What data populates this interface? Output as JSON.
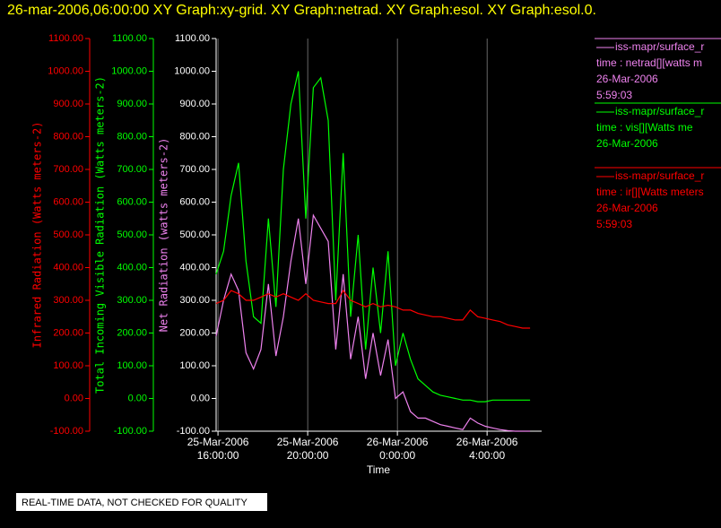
{
  "chart_data": {
    "type": "line",
    "title": "26-mar-2006,06:00:00  XY Graph:xy-grid.  XY Graph:netrad.  XY Graph:esol.  XY Graph:esol.0.",
    "x_label": "Time",
    "note": "REAL-TIME DATA, NOT CHECKED FOR QUALITY",
    "x": [
      "2006-03-25T15:55",
      "2006-03-25T16:15",
      "2006-03-25T16:35",
      "2006-03-25T16:55",
      "2006-03-25T17:15",
      "2006-03-25T17:35",
      "2006-03-25T17:55",
      "2006-03-25T18:15",
      "2006-03-25T18:35",
      "2006-03-25T18:55",
      "2006-03-25T19:15",
      "2006-03-25T19:35",
      "2006-03-25T19:55",
      "2006-03-25T20:15",
      "2006-03-25T20:35",
      "2006-03-25T20:55",
      "2006-03-25T21:15",
      "2006-03-25T21:35",
      "2006-03-25T21:55",
      "2006-03-25T22:15",
      "2006-03-25T22:35",
      "2006-03-25T22:55",
      "2006-03-25T23:15",
      "2006-03-25T23:35",
      "2006-03-25T23:55",
      "2006-03-26T00:15",
      "2006-03-26T00:35",
      "2006-03-26T00:55",
      "2006-03-26T01:15",
      "2006-03-26T01:35",
      "2006-03-26T01:55",
      "2006-03-26T02:15",
      "2006-03-26T02:35",
      "2006-03-26T02:55",
      "2006-03-26T03:15",
      "2006-03-26T03:35",
      "2006-03-26T03:55",
      "2006-03-26T04:15",
      "2006-03-26T04:35",
      "2006-03-26T04:55",
      "2006-03-26T05:15",
      "2006-03-26T05:35",
      "2006-03-26T05:55"
    ],
    "xlim": [
      "2006-03-25T15:55",
      "2006-03-26T06:26"
    ],
    "xticks": [
      {
        "value": "2006-03-25T16:00",
        "label": "25-Mar-2006\n16:00:00"
      },
      {
        "value": "2006-03-25T20:00",
        "label": "25-Mar-2006\n20:00:00"
      },
      {
        "value": "2006-03-26T00:00",
        "label": "26-Mar-2006\n0:00:00"
      },
      {
        "value": "2006-03-26T04:00",
        "label": "26-Mar-2006\n4:00:00"
      }
    ],
    "x_grid": true,
    "axes": [
      {
        "label": "Infrared Radiation (Watts meters-2)",
        "color": "#ff0000",
        "ylim": [
          -100,
          1100
        ],
        "yticks": [
          {
            "value": -100,
            "label": "-100.00"
          },
          {
            "value": 0,
            "label": "0.00"
          },
          {
            "value": 100,
            "label": "100.00"
          },
          {
            "value": 200,
            "label": "200.00"
          },
          {
            "value": 300,
            "label": "300.00"
          },
          {
            "value": 400,
            "label": "400.00"
          },
          {
            "value": 500,
            "label": "500.00"
          },
          {
            "value": 600,
            "label": "600.00"
          },
          {
            "value": 700,
            "label": "700.00"
          },
          {
            "value": 800,
            "label": "800.00"
          },
          {
            "value": 900,
            "label": "900.00"
          },
          {
            "value": 1000,
            "label": "1000.00"
          },
          {
            "value": 1100,
            "label": "1100.00"
          }
        ]
      },
      {
        "label": "Total Incoming Visible Radiation (Watts meters-2)",
        "color": "#00ff00",
        "ylim": [
          -100,
          1100
        ],
        "yticks": [
          {
            "value": -100,
            "label": "-100.00"
          },
          {
            "value": 0,
            "label": "0.00"
          },
          {
            "value": 100,
            "label": "100.00"
          },
          {
            "value": 200,
            "label": "200.00"
          },
          {
            "value": 300,
            "label": "300.00"
          },
          {
            "value": 400,
            "label": "400.00"
          },
          {
            "value": 500,
            "label": "500.00"
          },
          {
            "value": 600,
            "label": "600.00"
          },
          {
            "value": 700,
            "label": "700.00"
          },
          {
            "value": 800,
            "label": "800.00"
          },
          {
            "value": 900,
            "label": "900.00"
          },
          {
            "value": 1000,
            "label": "1000.00"
          },
          {
            "value": 1100,
            "label": "1100.00"
          }
        ]
      },
      {
        "label": "Net Radiation (watts meters-2)",
        "color": "#ee82ee",
        "ylim": [
          -100,
          1100
        ],
        "yticks": [
          {
            "value": -100,
            "label": "-100.00"
          },
          {
            "value": 0,
            "label": "0.00"
          },
          {
            "value": 100,
            "label": "100.00"
          },
          {
            "value": 200,
            "label": "200.00"
          },
          {
            "value": 300,
            "label": "300.00"
          },
          {
            "value": 400,
            "label": "400.00"
          },
          {
            "value": 500,
            "label": "500.00"
          },
          {
            "value": 600,
            "label": "600.00"
          },
          {
            "value": 700,
            "label": "700.00"
          },
          {
            "value": 800,
            "label": "800.00"
          },
          {
            "value": 900,
            "label": "900.00"
          },
          {
            "value": 1000,
            "label": "1000.00"
          },
          {
            "value": 1100,
            "label": "1100.00"
          }
        ]
      }
    ],
    "series": [
      {
        "name": "iss-mapr/surface_r",
        "legend_lines": [
          "time : netrad[][watts m",
          "26-Mar-2006",
          "5:59:03"
        ],
        "color": "#ee82ee",
        "axis": 2,
        "values": [
          190,
          300,
          380,
          330,
          140,
          90,
          150,
          350,
          130,
          250,
          420,
          550,
          350,
          560,
          520,
          480,
          150,
          380,
          120,
          250,
          60,
          200,
          70,
          180,
          0,
          20,
          -40,
          -60,
          -60,
          -70,
          -80,
          -85,
          -90,
          -95,
          -60,
          -75,
          -85,
          -90,
          -95,
          -98,
          -100,
          -100,
          -100
        ]
      },
      {
        "name": "iss-mapr/surface_r",
        "legend_lines": [
          "time : vis[][Watts me",
          "26-Mar-2006"
        ],
        "color": "#00ff00",
        "axis": 1,
        "values": [
          380,
          450,
          620,
          720,
          420,
          250,
          230,
          550,
          280,
          700,
          900,
          1000,
          550,
          950,
          980,
          850,
          300,
          750,
          250,
          500,
          150,
          400,
          200,
          450,
          100,
          200,
          120,
          60,
          40,
          20,
          10,
          5,
          0,
          -5,
          -5,
          -10,
          -10,
          -5,
          -5,
          -5,
          -5,
          -5,
          -5
        ]
      },
      {
        "name": "iss-mapr/surface_r",
        "legend_lines": [
          "time : ir[][Watts meters",
          "26-Mar-2006",
          "5:59:03"
        ],
        "color": "#ff0000",
        "axis": 0,
        "values": [
          290,
          300,
          330,
          320,
          300,
          300,
          310,
          320,
          310,
          320,
          310,
          300,
          320,
          300,
          295,
          290,
          290,
          330,
          300,
          290,
          280,
          290,
          280,
          285,
          280,
          270,
          270,
          260,
          255,
          250,
          250,
          245,
          240,
          240,
          270,
          250,
          245,
          240,
          235,
          225,
          220,
          215,
          215
        ]
      }
    ]
  }
}
